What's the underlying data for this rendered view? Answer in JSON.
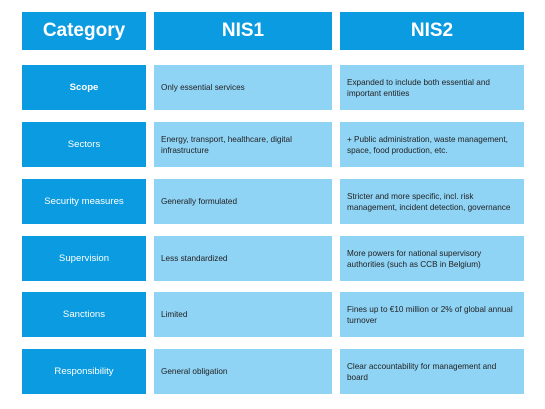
{
  "header": {
    "category": "Category",
    "nis1": "NIS1",
    "nis2": "NIS2"
  },
  "rows": [
    {
      "category": "Scope",
      "nis1": "Only essential services",
      "nis2": "Expanded to include both essential and important entities"
    },
    {
      "category": "Sectors",
      "nis1": "Energy, transport, healthcare, digital infrastructure",
      "nis2": "+ Public administration, waste management, space, food production, etc."
    },
    {
      "category": "Security measures",
      "nis1": "Generally formulated",
      "nis2": "Stricter and more specific, incl. risk management, incident detection, governance"
    },
    {
      "category": "Supervision",
      "nis1": "Less standardized",
      "nis2": "More powers for national supervisory authorities (such as CCB in Belgium)"
    },
    {
      "category": "Sanctions",
      "nis1": "Limited",
      "nis2": "Fines up to €10 million or 2% of global annual turnover"
    },
    {
      "category": "Responsibility",
      "nis1": "General obligation",
      "nis2": "Clear accountability for management and board"
    }
  ],
  "colors": {
    "header_bg": "#0a9be0",
    "cell_bg": "#8fd3f5",
    "text_dark": "#222222",
    "text_light": "#ffffff"
  }
}
